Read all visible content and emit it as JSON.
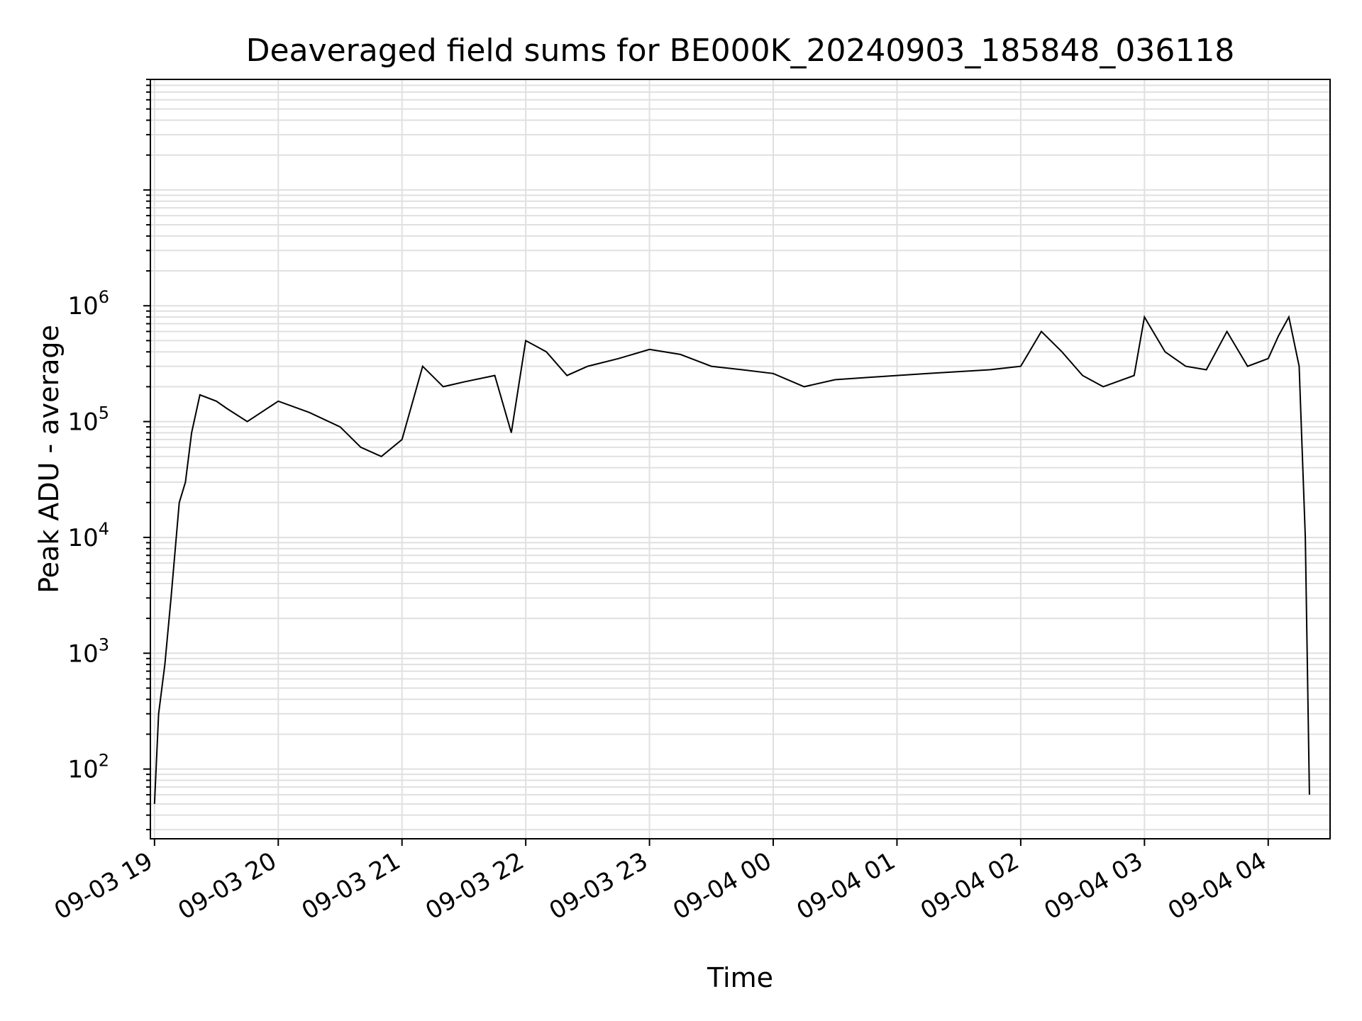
{
  "chart_data": {
    "type": "line",
    "title": "Deaveraged field sums for BE000K_20240903_185848_036118",
    "xlabel": "Time",
    "ylabel": "Peak ADU - average",
    "y_scale": "log",
    "ylim": [
      25,
      90000000
    ],
    "xlim": [
      "2024-09-03 18:58",
      "2024-09-04 04:30"
    ],
    "x_ticks": [
      "09-03 19",
      "09-03 20",
      "09-03 21",
      "09-03 22",
      "09-03 23",
      "09-04 00",
      "09-04 01",
      "09-04 02",
      "09-04 03",
      "09-04 04"
    ],
    "y_ticks": [
      {
        "base": "10",
        "exp": "2",
        "value": 100
      },
      {
        "base": "10",
        "exp": "3",
        "value": 1000
      },
      {
        "base": "10",
        "exp": "4",
        "value": 10000
      },
      {
        "base": "10",
        "exp": "5",
        "value": 100000
      },
      {
        "base": "10",
        "exp": "6",
        "value": 1000000
      }
    ],
    "grid": true,
    "line_color": "#000000",
    "grid_color": "#e0e0e0",
    "series": [
      {
        "x": [
          "2024-09-03 19:00",
          "2024-09-03 19:02",
          "2024-09-03 19:05",
          "2024-09-03 19:08",
          "2024-09-03 19:12",
          "2024-09-03 19:15",
          "2024-09-03 19:18",
          "2024-09-03 19:22",
          "2024-09-03 19:30",
          "2024-09-03 19:35",
          "2024-09-03 19:45",
          "2024-09-03 20:00",
          "2024-09-03 20:15",
          "2024-09-03 20:30",
          "2024-09-03 20:40",
          "2024-09-03 20:50",
          "2024-09-03 21:00",
          "2024-09-03 21:10",
          "2024-09-03 21:20",
          "2024-09-03 21:30",
          "2024-09-03 21:45",
          "2024-09-03 21:53",
          "2024-09-03 22:00",
          "2024-09-03 22:10",
          "2024-09-03 22:20",
          "2024-09-03 22:30",
          "2024-09-03 22:45",
          "2024-09-03 23:00",
          "2024-09-03 23:15",
          "2024-09-03 23:30",
          "2024-09-03 23:45",
          "2024-09-04 00:00",
          "2024-09-04 00:15",
          "2024-09-04 00:30",
          "2024-09-04 00:45",
          "2024-09-04 01:00",
          "2024-09-04 01:15",
          "2024-09-04 01:30",
          "2024-09-04 01:45",
          "2024-09-04 02:00",
          "2024-09-04 02:10",
          "2024-09-04 02:20",
          "2024-09-04 02:30",
          "2024-09-04 02:40",
          "2024-09-04 02:55",
          "2024-09-04 03:00",
          "2024-09-04 03:10",
          "2024-09-04 03:20",
          "2024-09-04 03:30",
          "2024-09-04 03:40",
          "2024-09-04 03:50",
          "2024-09-04 04:00",
          "2024-09-04 04:05",
          "2024-09-04 04:10",
          "2024-09-04 04:15",
          "2024-09-04 04:18",
          "2024-09-04 04:20"
        ],
        "y": [
          50,
          300,
          800,
          3000,
          20000,
          30000,
          80000,
          170000,
          150000,
          130000,
          100000,
          150000,
          120000,
          90000,
          60000,
          50000,
          70000,
          300000,
          200000,
          220000,
          250000,
          80000,
          500000,
          400000,
          250000,
          300000,
          350000,
          420000,
          380000,
          300000,
          280000,
          260000,
          200000,
          230000,
          240000,
          250000,
          260000,
          270000,
          280000,
          300000,
          600000,
          400000,
          250000,
          200000,
          250000,
          800000,
          400000,
          300000,
          280000,
          600000,
          300000,
          350000,
          550000,
          800000,
          300000,
          10000,
          60
        ]
      }
    ]
  }
}
